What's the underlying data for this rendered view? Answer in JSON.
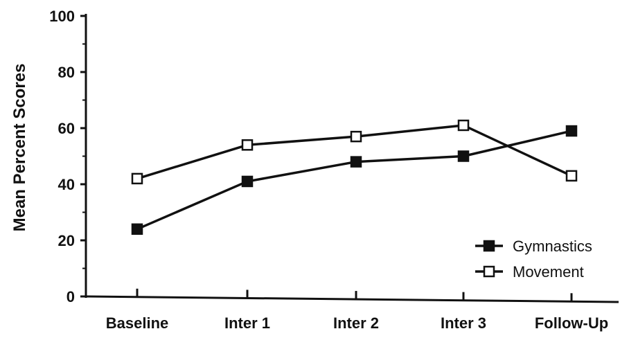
{
  "chart_data": {
    "type": "line",
    "title": "",
    "xlabel": "",
    "ylabel": "Mean Percent Scores",
    "categories": [
      "Baseline",
      "Inter  1",
      "Inter  2",
      "Inter  3",
      "Follow-Up"
    ],
    "ylim": [
      0,
      100
    ],
    "yticks": [
      "0",
      "20",
      "40",
      "60",
      "80",
      "100"
    ],
    "grid": false,
    "legend_position": "bottom-right",
    "series": [
      {
        "name": "Gymnastics",
        "marker": "filled-square",
        "color": "#111111",
        "values": [
          24,
          41,
          48,
          50,
          59
        ]
      },
      {
        "name": "Movement",
        "marker": "open-square",
        "color": "#111111",
        "values": [
          42,
          54,
          57,
          61,
          43
        ]
      }
    ]
  }
}
